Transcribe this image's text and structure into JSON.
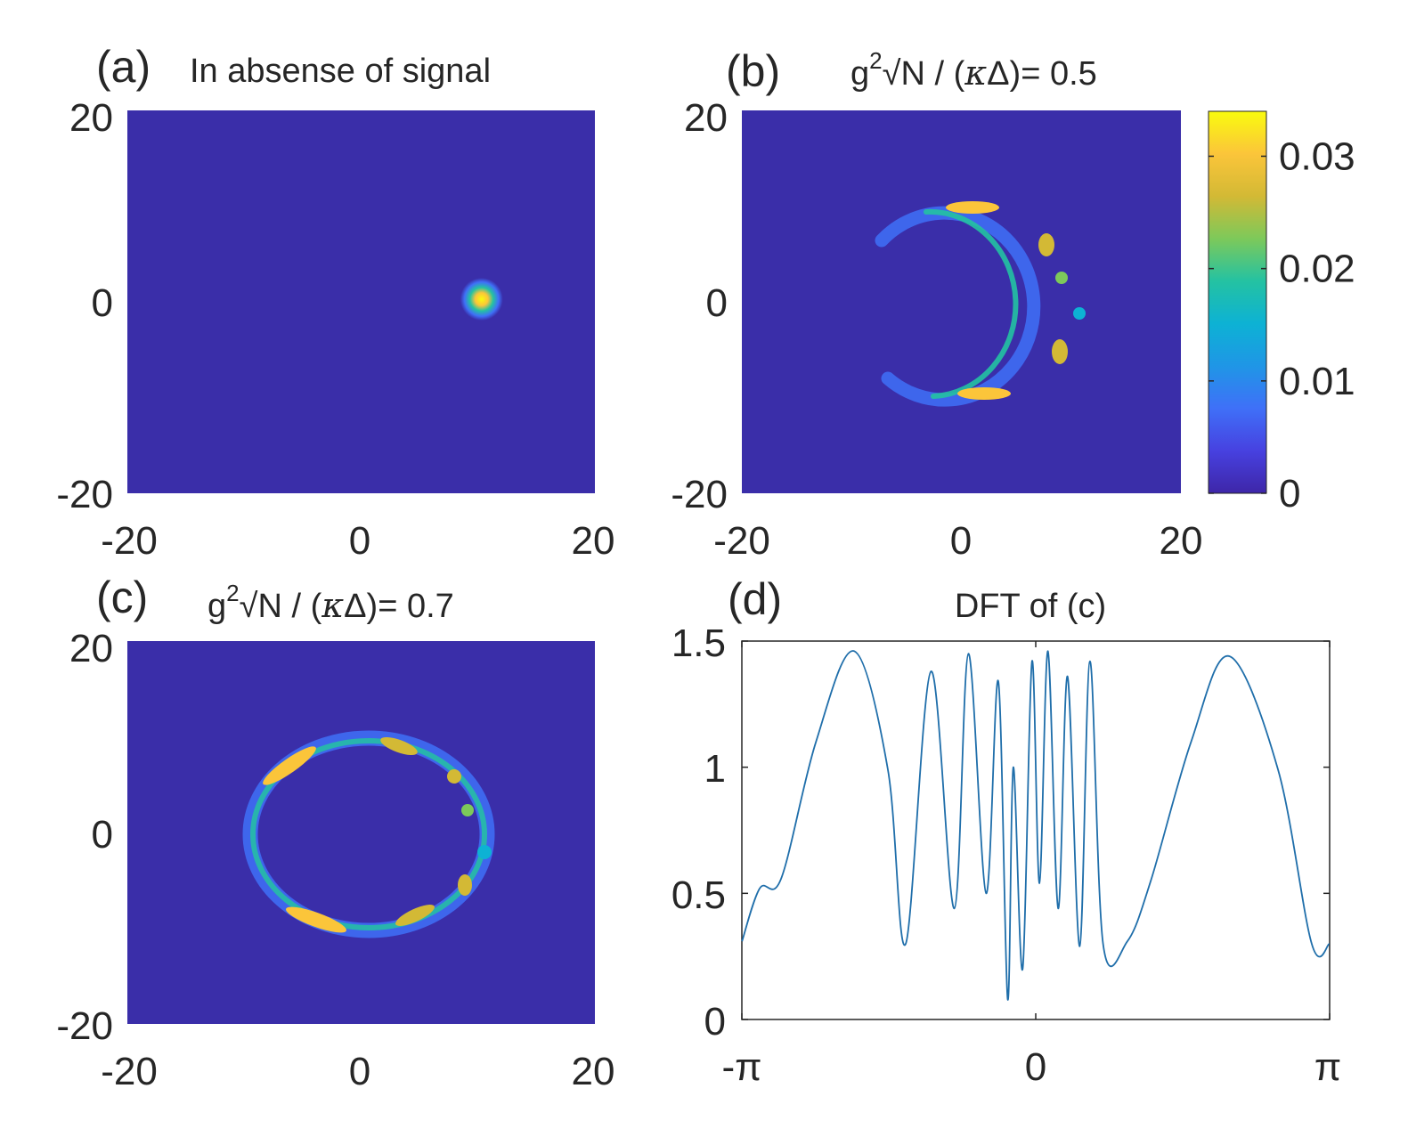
{
  "colors": {
    "background": "#3a2ea9",
    "line": "#1f6eaa",
    "axis": "#262626",
    "colormap": [
      "#3e26a8",
      "#4741e0",
      "#3f70f8",
      "#1f96e6",
      "#0db2d4",
      "#24c2a2",
      "#7dc95a",
      "#d3b935",
      "#fbc53a",
      "#f9fb0e"
    ]
  },
  "chart_data": [
    {
      "id": "a",
      "type": "heatmap",
      "panel_label": "(a)",
      "title": "In absense of signal",
      "xlim": [
        -20,
        20
      ],
      "ylim": [
        -20,
        20
      ],
      "xticks": [
        "-20",
        "0",
        "20"
      ],
      "yticks": [
        "20",
        "0",
        "-20"
      ],
      "features": [
        {
          "kind": "spot",
          "x": 10,
          "y": 0,
          "sigma": 0.9,
          "peak": 0.03
        }
      ]
    },
    {
      "id": "b",
      "type": "heatmap",
      "panel_label": "(b)",
      "title": "g2√N / (κΔ)= 0.5",
      "title_parts": {
        "base": "g",
        "sup": "2",
        "rest1": "√N / (",
        "kappa": "κ",
        "delta": "Δ",
        "rest2": ")= 0.5"
      },
      "xlim": [
        -20,
        20
      ],
      "ylim": [
        -20,
        20
      ],
      "xticks": [
        "-20",
        "0",
        "20"
      ],
      "yticks": [
        "20",
        "0",
        "-20"
      ],
      "colorbar": {
        "min": 0,
        "max": 0.034,
        "ticks": [
          "0.03",
          "0.02",
          "0.01",
          "0"
        ],
        "tick_values": [
          0.03,
          0.02,
          0.01,
          0
        ]
      },
      "features": [
        {
          "kind": "arc",
          "center": [
            0,
            0
          ],
          "radius": 10,
          "theta_from_deg": -150,
          "theta_to_deg": 150,
          "peak": 0.033
        }
      ]
    },
    {
      "id": "c",
      "type": "heatmap",
      "panel_label": "(c)",
      "title": "g2√N / (κΔ)= 0.7",
      "title_parts": {
        "base": "g",
        "sup": "2",
        "rest1": "√N / (",
        "kappa": "κ",
        "delta": "Δ",
        "rest2": ")= 0.7"
      },
      "xlim": [
        -20,
        20
      ],
      "ylim": [
        -20,
        20
      ],
      "xticks": [
        "-20",
        "0",
        "20"
      ],
      "yticks": [
        "20",
        "0",
        "-20"
      ],
      "features": [
        {
          "kind": "ring",
          "center": [
            0,
            0
          ],
          "radius": 10,
          "peak": 0.033
        }
      ]
    },
    {
      "id": "d",
      "type": "line",
      "panel_label": "(d)",
      "title": "DFT of (c)",
      "xlim": [
        -3.14159,
        3.14159
      ],
      "ylim": [
        0,
        1.5
      ],
      "xticks": [
        "-π",
        "0",
        "π"
      ],
      "yticks": [
        "1.5",
        "1",
        "0.5",
        "0"
      ],
      "series": [
        {
          "name": "DFT",
          "x": [
            -3.14,
            -2.95,
            -2.72,
            -2.35,
            -1.94,
            -1.58,
            -1.39,
            -1.12,
            -0.87,
            -0.72,
            -0.53,
            -0.4,
            -0.3,
            -0.24,
            -0.14,
            -0.04,
            0.04,
            0.13,
            0.24,
            0.34,
            0.47,
            0.58,
            0.72,
            0.98,
            1.23,
            1.66,
            2.07,
            2.59,
            2.95,
            3.14
          ],
          "y": [
            0.31,
            0.52,
            0.56,
            1.1,
            1.46,
            0.99,
            0.3,
            1.38,
            0.44,
            1.45,
            0.5,
            1.34,
            0.08,
            1.0,
            0.2,
            1.42,
            0.54,
            1.46,
            0.44,
            1.36,
            0.29,
            1.42,
            0.3,
            0.31,
            0.55,
            1.1,
            1.44,
            0.99,
            0.3,
            0.3
          ]
        }
      ]
    }
  ]
}
